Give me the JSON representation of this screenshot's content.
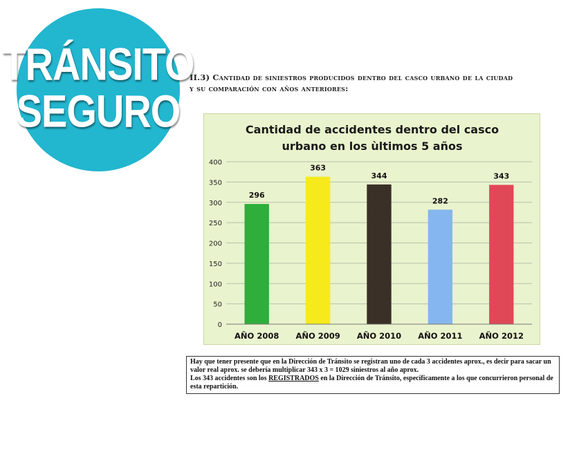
{
  "logo": {
    "line1": "TRÁNSITO",
    "line2": "SEGURO",
    "color": "#22b6cf"
  },
  "heading": {
    "line1": "II.3) Cantidad de siniestros producidos dentro del casco urbano de la ciudad",
    "line2": "y su comparación con años anteriores:"
  },
  "chart_data": {
    "type": "bar",
    "title_line1": "Cantidad de accidentes dentro del casco",
    "title_line2": "urbano en los ùltimos 5 años",
    "categories": [
      "AÑO 2008",
      "AÑO 2009",
      "AÑO 2010",
      "AÑO 2011",
      "AÑO 2012"
    ],
    "values": [
      296,
      363,
      344,
      282,
      343
    ],
    "colors": [
      "#2fae3b",
      "#f6ea1c",
      "#3a3027",
      "#86b6ef",
      "#e04858"
    ],
    "ylim": [
      0,
      400
    ],
    "yticks": [
      0,
      50,
      100,
      150,
      200,
      250,
      300,
      350,
      400
    ],
    "grid": true,
    "background": "#e9f3cd",
    "xlabel": "",
    "ylabel": ""
  },
  "note": {
    "line1": "Hay que tener presente que en la Dirección de Tránsito se registran uno de cada 3 accidentes aprox., es decir para sacar un valor real aprox. se debería multiplicar 343 x 3 = 1029 siniestros al año aprox.",
    "line2_pre": "Los 343 accidentes son los ",
    "line2_emph": "REGISTRADOS",
    "line2_post": " en la Dirección de Tránsito, específicamente a los que concurrieron personal de esta repartición."
  }
}
